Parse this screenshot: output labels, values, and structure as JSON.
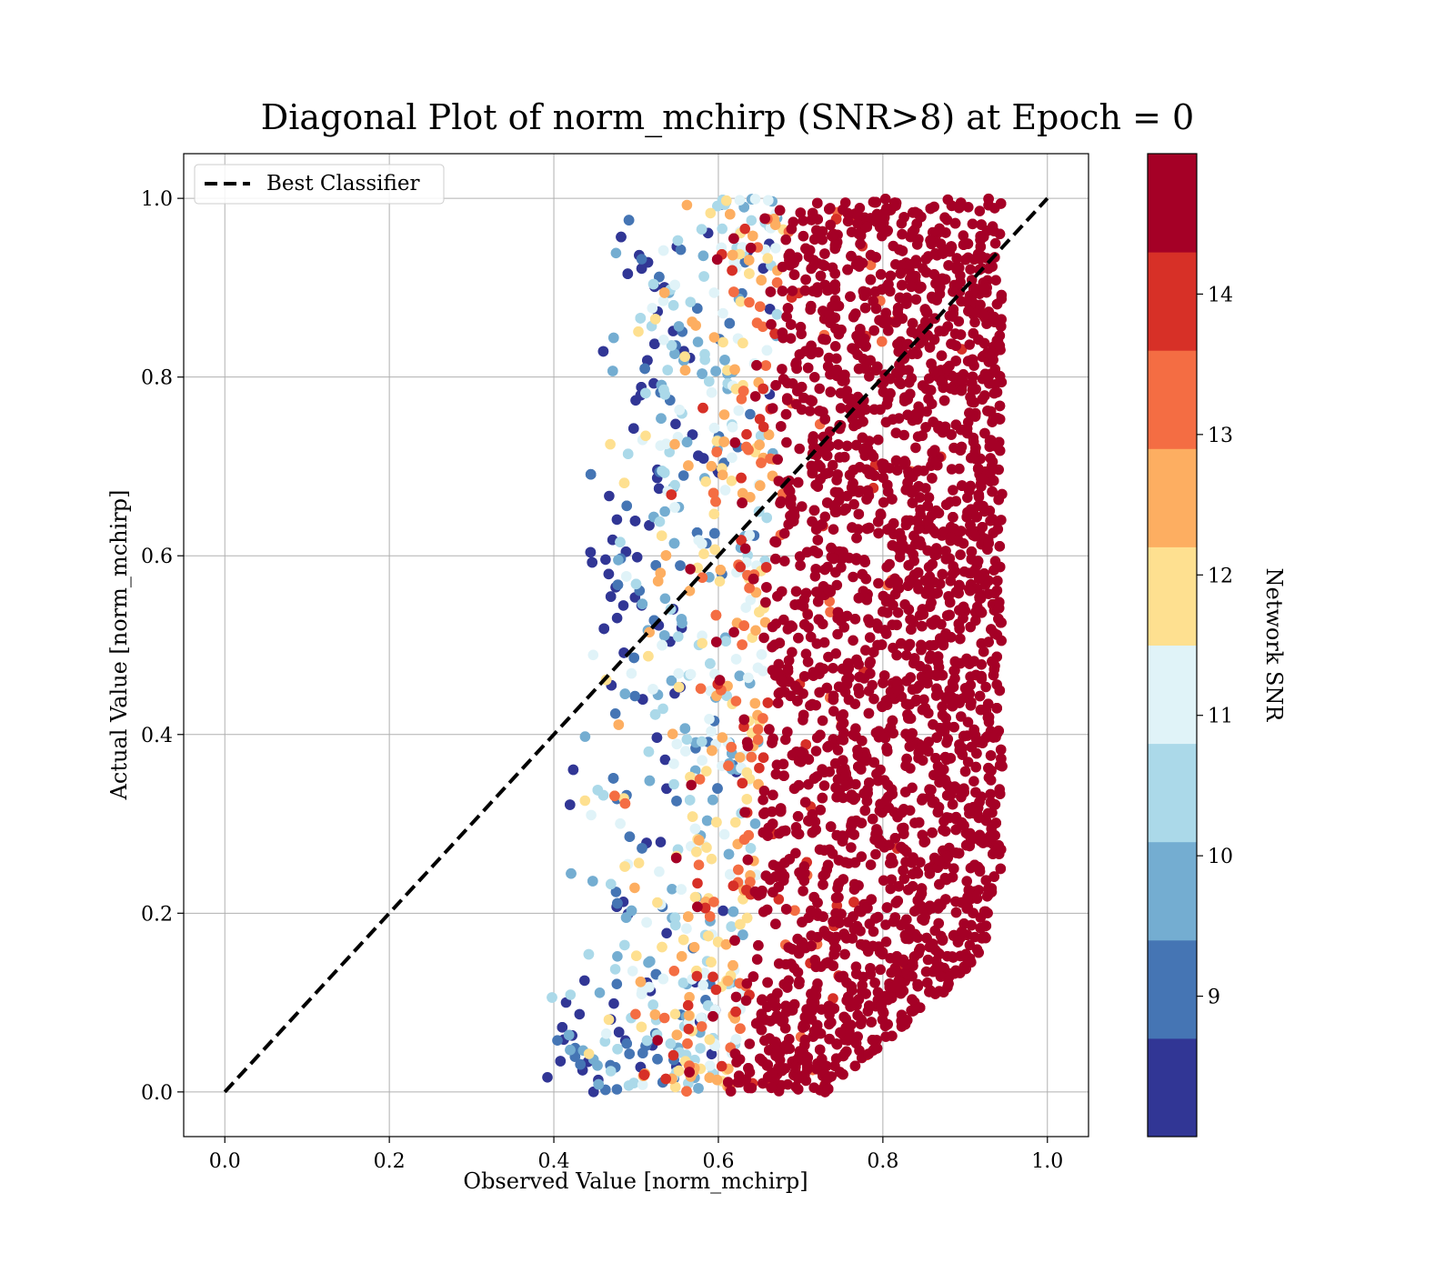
{
  "chart_data": {
    "type": "scatter",
    "title": "Diagonal Plot of norm_mchirp (SNR>8) at Epoch = 0",
    "xlabel": "Observed Value [norm_mchirp]",
    "ylabel": "Actual Value [norm_mchirp]",
    "xlim": [
      -0.05,
      1.05
    ],
    "ylim": [
      -0.05,
      1.05
    ],
    "xticks": [
      "0.0",
      "0.2",
      "0.4",
      "0.6",
      "0.8",
      "1.0"
    ],
    "yticks": [
      "0.0",
      "0.2",
      "0.4",
      "0.6",
      "0.8",
      "1.0"
    ],
    "grid": true,
    "legend": {
      "placement": "upper-left",
      "entries": [
        {
          "label": "Best Classifier",
          "style": "dashed",
          "color": "#000000"
        }
      ]
    },
    "reference_line": {
      "name": "Best Classifier",
      "x": [
        0.0,
        1.0
      ],
      "y": [
        0.0,
        1.0
      ]
    },
    "colorbar": {
      "label": "Network SNR",
      "range": [
        8,
        15
      ],
      "ticks": [
        "9",
        "10",
        "11",
        "12",
        "13",
        "14"
      ],
      "bins": [
        {
          "from": 8.0,
          "to": 8.7,
          "color": "#313695"
        },
        {
          "from": 8.7,
          "to": 9.4,
          "color": "#4575b4"
        },
        {
          "from": 9.4,
          "to": 10.1,
          "color": "#74add1"
        },
        {
          "from": 10.1,
          "to": 10.8,
          "color": "#abd9e9"
        },
        {
          "from": 10.8,
          "to": 11.5,
          "color": "#e0f3f8"
        },
        {
          "from": 11.5,
          "to": 12.2,
          "color": "#fee090"
        },
        {
          "from": 12.2,
          "to": 12.9,
          "color": "#fdae61"
        },
        {
          "from": 12.9,
          "to": 13.6,
          "color": "#f46d43"
        },
        {
          "from": 13.6,
          "to": 14.3,
          "color": "#d73027"
        },
        {
          "from": 14.3,
          "to": 15.0,
          "color": "#a50026"
        }
      ]
    },
    "scatter_summary": {
      "x_range": [
        0.37,
        0.96
      ],
      "y_range": [
        0.0,
        1.0
      ],
      "note_high_snr_region_x": [
        0.68,
        0.95
      ]
    }
  }
}
